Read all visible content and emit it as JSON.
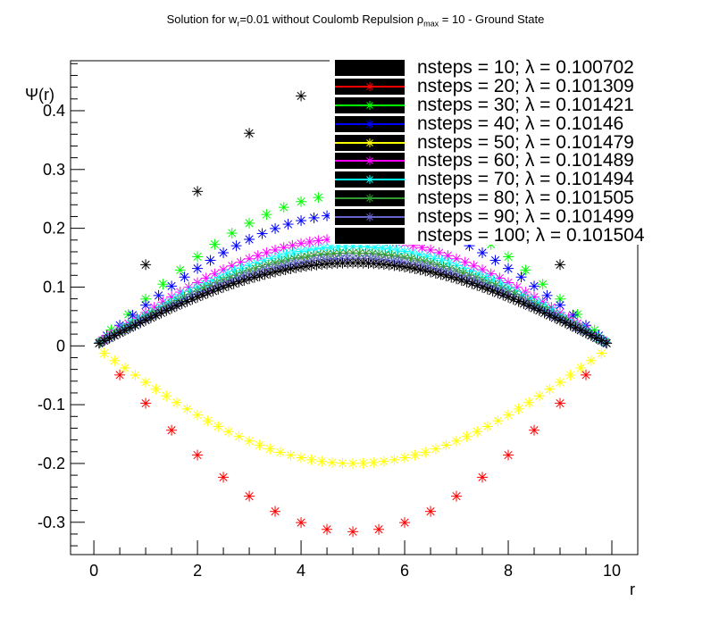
{
  "title": {
    "prefix": "Solution for w",
    "sub1": "r",
    "mid": "=0.01 without Coulomb Repulsion ρ",
    "sub2": "max",
    "suffix": " = 10 - Ground State"
  },
  "chart_data": {
    "type": "scatter",
    "title": "Solution for w_r=0.01 without Coulomb Repulsion ρ_max = 10 - Ground State",
    "xlabel": "r",
    "ylabel": "Ψ(r)",
    "xlim": [
      -0.45,
      10.5
    ],
    "ylim": [
      -0.355,
      0.485
    ],
    "xticks": [
      "0",
      "2",
      "4",
      "6",
      "8",
      "10"
    ],
    "yticks": [
      "-0.3",
      "-0.2",
      "-0.1",
      "0",
      "0.1",
      "0.2",
      "0.3",
      "0.4"
    ],
    "legend_position": "top-right",
    "series": [
      {
        "name": "nsteps = 10; λ = 0.100702",
        "color": "#000000",
        "n": 10,
        "amplitude": 0.447,
        "marker": "asterisk"
      },
      {
        "name": "nsteps = 20; λ = 0.101309",
        "color": "#ff0000",
        "n": 20,
        "amplitude": -0.316,
        "marker": "asterisk"
      },
      {
        "name": "nsteps = 30; λ = 0.101421",
        "color": "#00ff00",
        "n": 30,
        "amplitude": 0.258,
        "marker": "asterisk"
      },
      {
        "name": "nsteps = 40; λ = 0.10146",
        "color": "#0000ff",
        "n": 40,
        "amplitude": 0.224,
        "marker": "asterisk"
      },
      {
        "name": "nsteps = 50; λ = 0.101479",
        "color": "#ffff00",
        "n": 50,
        "amplitude": -0.2,
        "marker": "asterisk"
      },
      {
        "name": "nsteps = 60; λ = 0.101489",
        "color": "#ff00ff",
        "n": 60,
        "amplitude": 0.183,
        "marker": "asterisk"
      },
      {
        "name": "nsteps = 70; λ = 0.101494",
        "color": "#00ffff",
        "n": 70,
        "amplitude": 0.169,
        "marker": "asterisk"
      },
      {
        "name": "nsteps = 80; λ = 0.101505",
        "color": "#339933",
        "n": 80,
        "amplitude": 0.158,
        "marker": "asterisk"
      },
      {
        "name": "nsteps = 90; λ = 0.101499",
        "color": "#6666cc",
        "n": 90,
        "amplitude": 0.149,
        "marker": "asterisk"
      },
      {
        "name": "nsteps = 100; λ = 0.101504",
        "color": "#000000",
        "n": 100,
        "amplitude": 0.141,
        "marker": "asterisk"
      }
    ]
  }
}
